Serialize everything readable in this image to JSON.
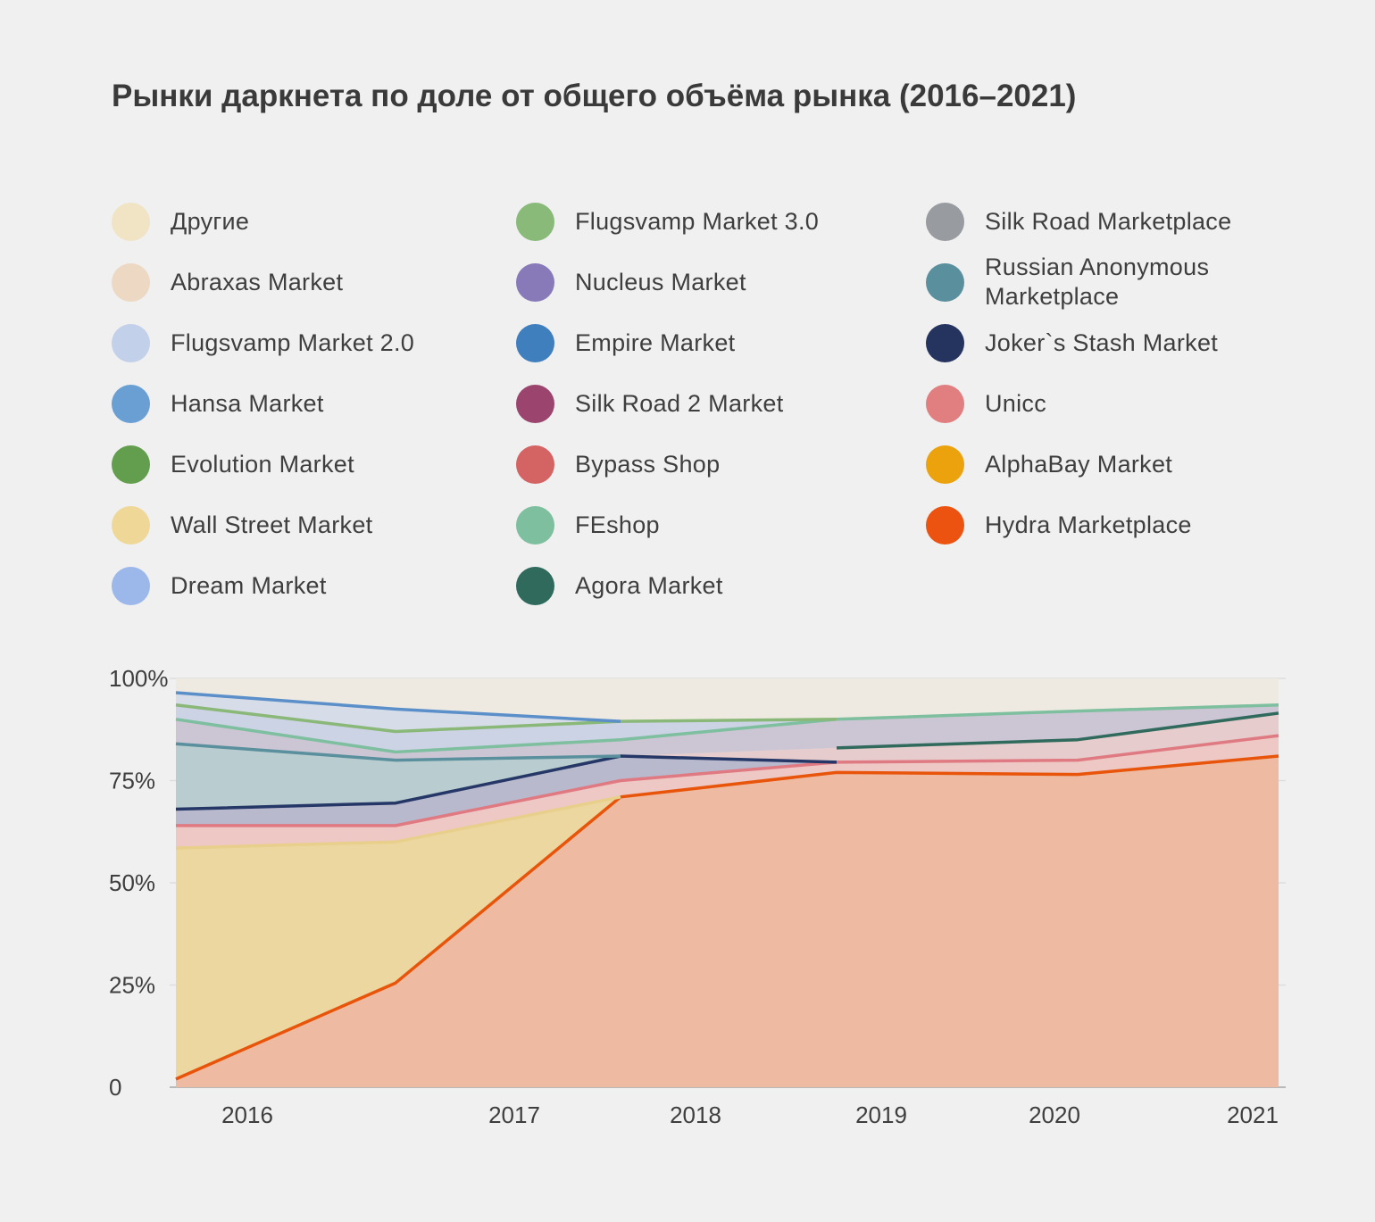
{
  "chart_data": {
    "type": "area",
    "title": "Рынки даркнета по доле от общего объёма рынка (2016–2021)",
    "xlabel": "",
    "ylabel": "",
    "x": [
      "2016",
      "2016.5",
      "2017.5",
      "2019",
      "2020",
      "2021"
    ],
    "x_tick_labels": [
      "2016",
      "2017",
      "2018",
      "2019",
      "2020",
      "2021"
    ],
    "y_tick_labels": [
      "0",
      "25%",
      "50%",
      "75%",
      "100%"
    ],
    "ylim": [
      0,
      100
    ],
    "stacked": true,
    "legend_position": "top",
    "series": [
      {
        "name": "Hydra Marketplace",
        "color": "#e8540a",
        "fill": "#eebba2",
        "values": [
          2,
          25.5,
          71,
          77,
          76.5,
          81
        ]
      },
      {
        "name": "Wall Street Market",
        "color": "#e8cf8b",
        "fill": "#edd7a0",
        "values": [
          56.5,
          34.5,
          0,
          0,
          0,
          0
        ]
      },
      {
        "name": "AlphaBay Market",
        "color": "#eba213",
        "fill": "#f0d3bf",
        "values": [
          0,
          0,
          0,
          0,
          0,
          0
        ]
      },
      {
        "name": "Unicc",
        "color": "#e07a82",
        "fill": "#edc8c4",
        "values": [
          5.5,
          4,
          4,
          2.5,
          3.5,
          5
        ]
      },
      {
        "name": "Joker`s Stash Market",
        "color": "#253766",
        "fill": "#b9b9cd",
        "values": [
          4,
          5.5,
          6,
          0,
          0,
          0
        ]
      },
      {
        "name": "Russian Anonymous Marketplace",
        "color": "#5a909d",
        "fill": "#b9cccf",
        "values": [
          16,
          10.5,
          0,
          0,
          0,
          0
        ]
      },
      {
        "name": "Agora Market",
        "color": "#2f6a5d",
        "fill": "#e6cccc",
        "values": [
          0,
          0,
          0,
          3.5,
          5,
          5.5
        ]
      },
      {
        "name": "FEshop",
        "color": "#7dbf9e",
        "fill": "#ccc6d4",
        "values": [
          6,
          2,
          4,
          7,
          7,
          2
        ]
      },
      {
        "name": "Flugsvamp Market 3.0",
        "color": "#8ab878",
        "fill": "#ccd3e4",
        "values": [
          3.5,
          5,
          4.5,
          0,
          0,
          0
        ]
      },
      {
        "name": "Hansa Market",
        "color": "#5b8fc9",
        "fill": "#d6dde8",
        "values": [
          3,
          5.5,
          0,
          0,
          0,
          0
        ]
      },
      {
        "name": "Другие",
        "color": "#eae2cf",
        "fill": "#eeeae1",
        "values": [
          0,
          0,
          0,
          0,
          0,
          0
        ]
      }
    ]
  },
  "legend": {
    "items": [
      {
        "label": "Другие",
        "color": "#f0e4c4"
      },
      {
        "label": "Abraxas Market",
        "color": "#ecd8c3"
      },
      {
        "label": "Flugsvamp Market 2.0",
        "color": "#c2d0ea"
      },
      {
        "label": "Hansa Market",
        "color": "#6a9fd4"
      },
      {
        "label": "Evolution Market",
        "color": "#629e4d"
      },
      {
        "label": "Wall Street Market",
        "color": "#efd797"
      },
      {
        "label": "Dream Market",
        "color": "#9cb8ea"
      },
      {
        "label": "Flugsvamp Market 3.0",
        "color": "#8aba7a"
      },
      {
        "label": "Nucleus Market",
        "color": "#887ab8"
      },
      {
        "label": "Empire Market",
        "color": "#3f7fbe"
      },
      {
        "label": "Silk Road 2 Market",
        "color": "#9b456e"
      },
      {
        "label": "Bypass Shop",
        "color": "#d46363"
      },
      {
        "label": "FEshop",
        "color": "#7dbf9e"
      },
      {
        "label": "Agora Market",
        "color": "#2f6a5d"
      },
      {
        "label": "Silk Road Marketplace",
        "color": "#989ca1"
      },
      {
        "label": "Russian Anonymous Marketplace",
        "color": "#5a909d"
      },
      {
        "label": "Joker`s Stash Market",
        "color": "#25335f"
      },
      {
        "label": "Unicc",
        "color": "#e07e80"
      },
      {
        "label": "AlphaBay Market",
        "color": "#eba20c"
      },
      {
        "label": "Hydra Marketplace",
        "color": "#ec5210"
      }
    ]
  }
}
